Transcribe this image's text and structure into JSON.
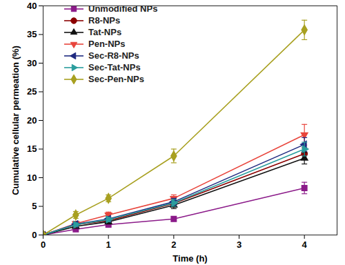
{
  "chart_data": {
    "type": "line",
    "x_label": "Time (h)",
    "y_label": "Cumulative cellular permeation (%)",
    "x": [
      0,
      0.5,
      1,
      2,
      4
    ],
    "xlim": [
      0,
      4.5
    ],
    "xticks": [
      0,
      1,
      2,
      3,
      4
    ],
    "ylim": [
      0,
      40
    ],
    "yticks": [
      0,
      5,
      10,
      15,
      20,
      25,
      30,
      35,
      40
    ],
    "legend": "upper left",
    "series": [
      {
        "name": "Unmodified NPs",
        "color": "#8b1a89",
        "marker": "square",
        "values": [
          0,
          1.0,
          1.8,
          2.8,
          8.2
        ],
        "errors": [
          0,
          0.3,
          0.3,
          0.4,
          1.0
        ]
      },
      {
        "name": "R8-NPs",
        "color": "#8b0000",
        "marker": "circle",
        "values": [
          0,
          1.8,
          2.5,
          5.5,
          14.2
        ],
        "errors": [
          0,
          0.3,
          0.4,
          0.6,
          1.0
        ]
      },
      {
        "name": "Tat-NPs",
        "color": "#111111",
        "marker": "triangle-up",
        "values": [
          0,
          1.5,
          2.3,
          5.2,
          13.4
        ],
        "errors": [
          0,
          0.3,
          0.4,
          0.6,
          1.0
        ]
      },
      {
        "name": "Pen-NPs",
        "color": "#e8453c",
        "marker": "triangle-down",
        "values": [
          0,
          2.0,
          3.5,
          6.4,
          17.5
        ],
        "errors": [
          0,
          0.4,
          0.5,
          0.6,
          1.8
        ]
      },
      {
        "name": "Sec-R8-NPs",
        "color": "#1f2a80",
        "marker": "triangle-left",
        "values": [
          0,
          1.9,
          2.8,
          5.8,
          15.8
        ],
        "errors": [
          0,
          0.3,
          0.4,
          0.6,
          1.2
        ]
      },
      {
        "name": "Sec-Tat-NPs",
        "color": "#2a9d9d",
        "marker": "triangle-right",
        "values": [
          0,
          1.8,
          2.7,
          5.6,
          15.0
        ],
        "errors": [
          0,
          0.3,
          0.4,
          0.6,
          1.2
        ]
      },
      {
        "name": "Sec-Pen-NPs",
        "color": "#a8a020",
        "marker": "diamond",
        "values": [
          0,
          3.5,
          6.4,
          13.8,
          35.8
        ],
        "errors": [
          0,
          0.6,
          0.6,
          1.2,
          1.7
        ]
      }
    ]
  }
}
